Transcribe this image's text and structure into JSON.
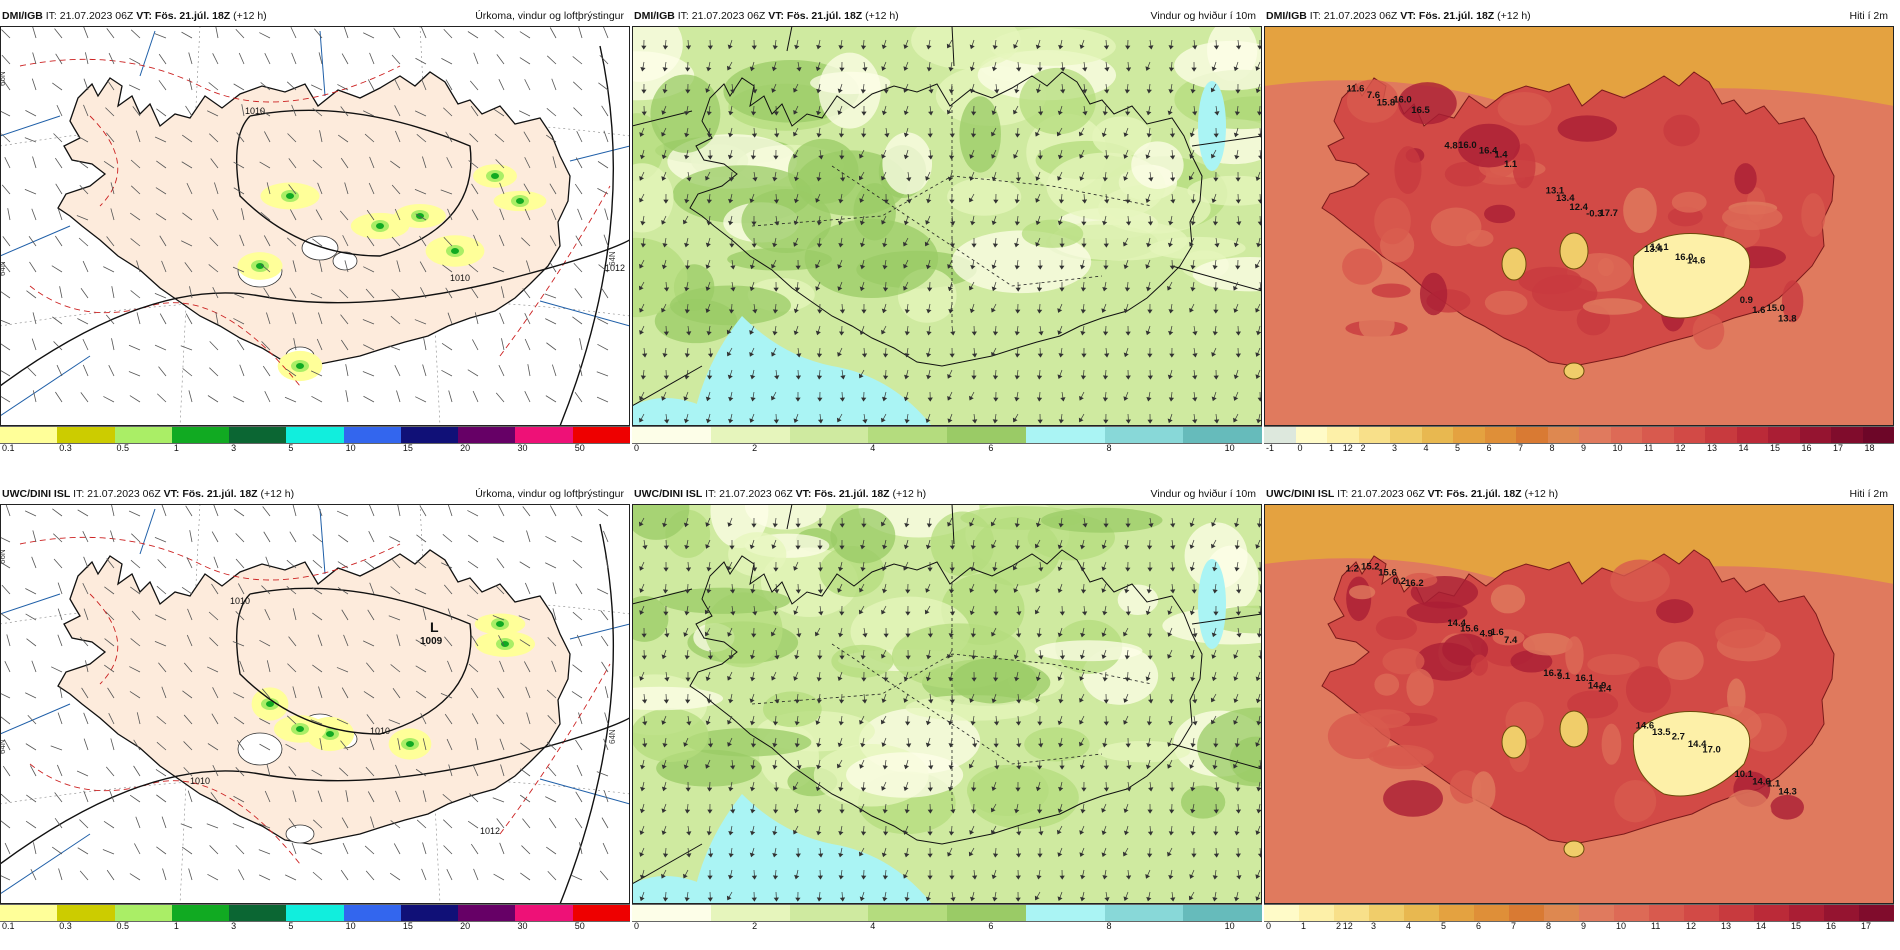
{
  "rows": [
    {
      "model": "DMI/IGB",
      "it": "IT: 21.07.2023 06Z",
      "vt": "VT: Fös. 21.júl. 18Z",
      "lead": "(+12 h)"
    },
    {
      "model": "UWC/DINI ISL",
      "it": "IT: 21.07.2023 06Z",
      "vt": "VT: Fös. 21.júl. 18Z",
      "lead": "(+12 h)"
    }
  ],
  "panels": {
    "precip": {
      "title": "Úrkoma, vindur og loftþrýstingur"
    },
    "wind": {
      "title": "Vindur og hviður í 10m"
    },
    "temp": {
      "title": "Hiti í 2m"
    }
  },
  "scales": {
    "precip": {
      "ticks": [
        "0.1",
        "0.3",
        "0.5",
        "1",
        "3",
        "5",
        "10",
        "15",
        "20",
        "30",
        "50"
      ],
      "colors": [
        "#ffff99",
        "#cccc00",
        "#aaee66",
        "#11aa22",
        "#0b6633",
        "#11eedd",
        "#3366ee",
        "#101077",
        "#660066",
        "#ee1177",
        "#ee0000"
      ]
    },
    "wind": {
      "ticks": [
        "0",
        "2",
        "4",
        "6",
        "8",
        "10",
        "12"
      ],
      "colors": [
        "#fdfee8",
        "#e6f5bc",
        "#cfeaa0",
        "#b4dc7e",
        "#9acb66",
        "#aaf4f4",
        "#88d8d8",
        "#66bbbb"
      ]
    },
    "temp_top": {
      "ticks": [
        "-1",
        "0",
        "1",
        "2",
        "3",
        "4",
        "5",
        "6",
        "7",
        "8",
        "9",
        "10",
        "11",
        "12",
        "13",
        "14",
        "15",
        "16",
        "17",
        "18"
      ],
      "colors": [
        "#dde8dd",
        "#fffbc8",
        "#fdf0a8",
        "#f8e08a",
        "#f0cd6a",
        "#e8b850",
        "#e4a240",
        "#df8f38",
        "#d97a33",
        "#de8850",
        "#e07a5e",
        "#dd6a56",
        "#d85a4e",
        "#d24a46",
        "#c83a3e",
        "#bb2a38",
        "#aa1e34",
        "#951430",
        "#800c2c",
        "#6d0628"
      ]
    },
    "temp_bottom": {
      "ticks": [
        "0",
        "1",
        "2",
        "3",
        "4",
        "5",
        "6",
        "7",
        "8",
        "9",
        "10",
        "11",
        "12",
        "13",
        "14",
        "15",
        "16",
        "17"
      ],
      "colors": [
        "#fffbc8",
        "#fdf0a8",
        "#f8e08a",
        "#f0cd6a",
        "#e8b850",
        "#e4a240",
        "#df8f38",
        "#d97a33",
        "#de8850",
        "#e07a5e",
        "#dd6a56",
        "#d85a4e",
        "#d24a46",
        "#c83a3e",
        "#bb2a38",
        "#aa1e34",
        "#951430",
        "#800c2c"
      ]
    }
  },
  "temp_labels_top": [
    "11.6",
    "4.8",
    "13.1",
    "13.4",
    "0.9",
    "7.6",
    "16.0",
    "13.4",
    "14.1",
    "1.6",
    "15.8",
    "16.4",
    "12.4",
    "16.0",
    "15.0",
    "16.0",
    "1.4",
    "-0.3",
    "14.6",
    "13.8",
    "16.5",
    "1.1",
    "17.7"
  ],
  "temp_labels_bottom": [
    "1.2",
    "14.4",
    "16.7",
    "14.6",
    "10.1",
    "15.2",
    "15.6",
    "9.1",
    "13.5",
    "14.6",
    "15.6",
    "4.9",
    "16.1",
    "2.7",
    "1.1",
    "0.2",
    "1.6",
    "14.9",
    "14.4",
    "14.3",
    "16.2",
    "7.4",
    "1.4",
    "17.0"
  ],
  "pressure_labels_top": [
    "1010",
    "1010",
    "1012"
  ],
  "pressure_labels_bottom": [
    "1010",
    "1010",
    "1010",
    "1012"
  ],
  "low_center": {
    "letter": "L",
    "value": "1009"
  },
  "lat_labels": [
    "66N",
    "64N",
    "64N",
    "66N",
    "64N",
    "64N"
  ]
}
